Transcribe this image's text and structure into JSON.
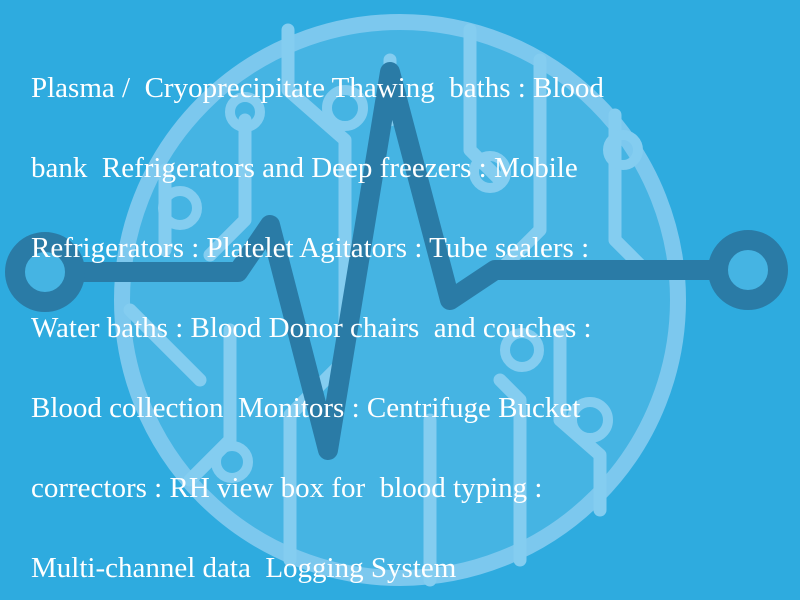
{
  "colors": {
    "background": "#2eabdf",
    "circle_fill": "#45b4e3",
    "circle_stroke": "#7cc8ee",
    "circuit_light": "#84cdf0",
    "pulse": "#2a7ba6",
    "text": "#ffffff"
  },
  "background_art": {
    "icon": "heartbeat-circuit-icon"
  },
  "text_lines": [
    "Plasma /  Cryoprecipitate Thawing  baths : Blood",
    "bank  Refrigerators and Deep freezers : Mobile",
    "Refrigerators : Platelet Agitators : Tube sealers :",
    "Water baths : Blood Donor chairs  and couches :",
    "Blood collection  Monitors : Centrifuge Bucket",
    "correctors : RH view box for  blood typing :",
    "Multi-channel data  Logging System"
  ]
}
